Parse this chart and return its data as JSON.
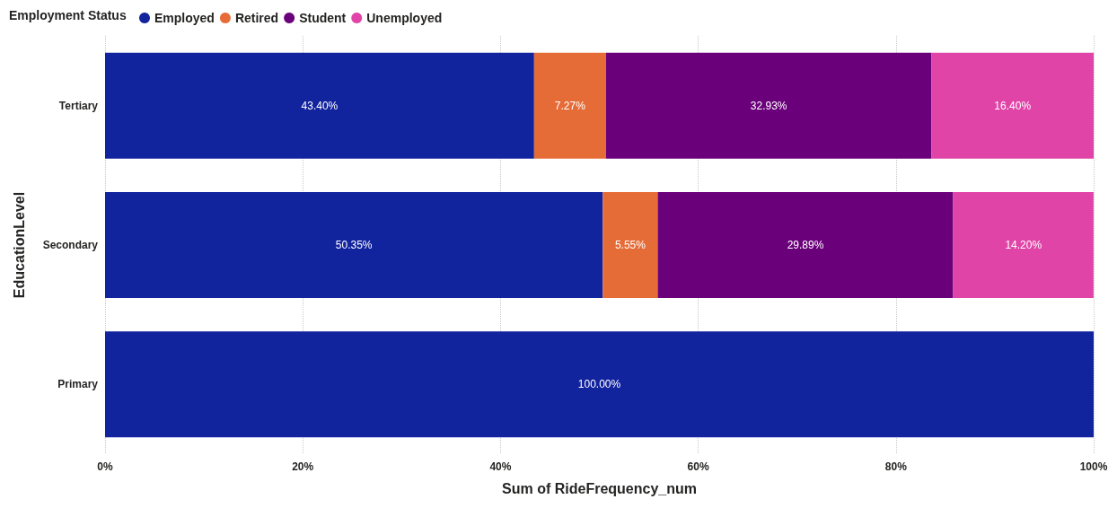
{
  "chart_data": {
    "type": "bar",
    "orientation": "horizontal",
    "stacked": true,
    "xlabel": "Sum of RideFrequency_num",
    "ylabel": "EducationLevel",
    "legend_title": "Employment Status",
    "legend": "top left",
    "grid": "x",
    "categories": [
      "Tertiary",
      "Secondary",
      "Primary"
    ],
    "xlim": [
      0,
      100
    ],
    "xticks": [
      {
        "value": 0,
        "label": "0%"
      },
      {
        "value": 20,
        "label": "20%"
      },
      {
        "value": 40,
        "label": "40%"
      },
      {
        "value": 60,
        "label": "60%"
      },
      {
        "value": 80,
        "label": "80%"
      },
      {
        "value": 100,
        "label": "100%"
      }
    ],
    "series": [
      {
        "name": "Employed",
        "color": "#12239e",
        "values": [
          43.4,
          50.35,
          100
        ],
        "value_labels": [
          "43.40%",
          "50.35%",
          "100.00%"
        ]
      },
      {
        "name": "Retired",
        "color": "#e66c37",
        "values": [
          7.27,
          5.55,
          null
        ],
        "value_labels": [
          "7.27%",
          "5.55%",
          null
        ]
      },
      {
        "name": "Student",
        "color": "#6b007b",
        "values": [
          32.93,
          29.89,
          null
        ],
        "value_labels": [
          "32.93%",
          "29.89%",
          null
        ]
      },
      {
        "name": "Unemployed",
        "color": "#e044a7",
        "values": [
          16.4,
          14.2,
          null
        ],
        "value_labels": [
          "16.40%",
          "14.20%",
          null
        ]
      }
    ]
  }
}
